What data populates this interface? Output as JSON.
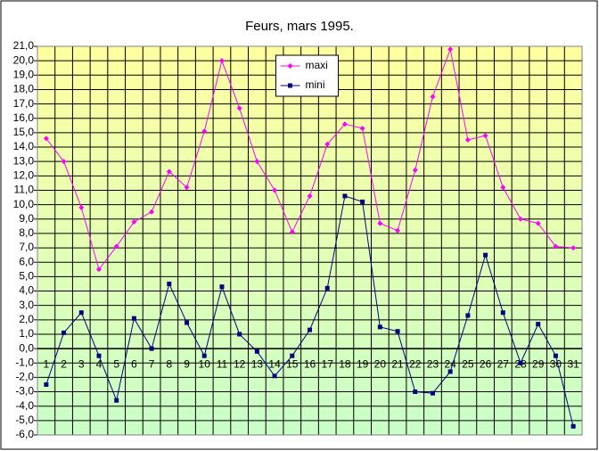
{
  "chart_data": {
    "type": "line",
    "title": "Feurs, mars 1995.",
    "categories": [
      "1",
      "2",
      "3",
      "4",
      "5",
      "6",
      "7",
      "8",
      "9",
      "10",
      "11",
      "12",
      "13",
      "14",
      "15",
      "16",
      "17",
      "18",
      "19",
      "20",
      "21",
      "22",
      "23",
      "24",
      "25",
      "26",
      "27",
      "28",
      "29",
      "30",
      "31"
    ],
    "series": [
      {
        "name": "maxi",
        "color": "#ff00ff",
        "marker": "diamond",
        "values": [
          14.6,
          13.0,
          9.8,
          5.5,
          7.1,
          8.8,
          9.5,
          12.3,
          11.2,
          15.1,
          20.0,
          16.7,
          13.0,
          11.0,
          8.1,
          10.6,
          14.2,
          15.6,
          15.3,
          8.7,
          8.2,
          12.4,
          17.5,
          20.8,
          14.5,
          14.8,
          11.2,
          9.0,
          8.7,
          7.1,
          7.0
        ]
      },
      {
        "name": "mini",
        "color": "#000080",
        "marker": "square",
        "values": [
          -2.5,
          1.1,
          2.5,
          -0.5,
          -3.6,
          2.1,
          0.0,
          4.5,
          1.8,
          -0.5,
          4.3,
          1.0,
          -0.2,
          -1.9,
          -0.5,
          1.3,
          4.2,
          10.6,
          10.2,
          1.5,
          1.2,
          -3.0,
          -3.1,
          -1.6,
          2.3,
          6.5,
          2.5,
          -1.0,
          1.7,
          -0.5,
          -5.4
        ]
      }
    ],
    "ylim": [
      -6,
      21
    ],
    "yticks": [
      {
        "value": -6,
        "label": "-6,0"
      },
      {
        "value": -5,
        "label": "-5,0"
      },
      {
        "value": -4,
        "label": "-4,0"
      },
      {
        "value": -3,
        "label": "-3,0"
      },
      {
        "value": -2,
        "label": "-2,0"
      },
      {
        "value": -1,
        "label": "-1,0"
      },
      {
        "value": 0,
        "label": "0,0"
      },
      {
        "value": 1,
        "label": "1,0"
      },
      {
        "value": 2,
        "label": "2,0"
      },
      {
        "value": 3,
        "label": "3,0"
      },
      {
        "value": 4,
        "label": "4,0"
      },
      {
        "value": 5,
        "label": "5,0"
      },
      {
        "value": 6,
        "label": "6,0"
      },
      {
        "value": 7,
        "label": "7,0"
      },
      {
        "value": 8,
        "label": "8,0"
      },
      {
        "value": 9,
        "label": "9,0"
      },
      {
        "value": 10,
        "label": "10,0"
      },
      {
        "value": 11,
        "label": "11,0"
      },
      {
        "value": 12,
        "label": "12,0"
      },
      {
        "value": 13,
        "label": "13,0"
      },
      {
        "value": 14,
        "label": "14,0"
      },
      {
        "value": 15,
        "label": "15,0"
      },
      {
        "value": 16,
        "label": "16,0"
      },
      {
        "value": 17,
        "label": "17,0"
      },
      {
        "value": 18,
        "label": "18,0"
      },
      {
        "value": 19,
        "label": "19,0"
      },
      {
        "value": 20,
        "label": "20,0"
      },
      {
        "value": 21,
        "label": "21,0"
      }
    ],
    "grid": true,
    "legend": "top"
  }
}
